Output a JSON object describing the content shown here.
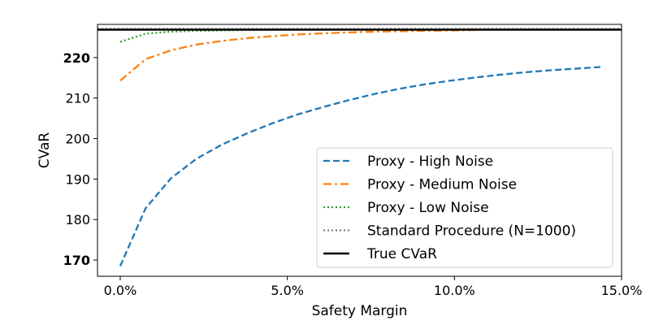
{
  "chart_data": {
    "type": "line",
    "xlabel": "Safety Margin",
    "ylabel": "CVaR",
    "xlim": [
      -0.0068,
      0.15
    ],
    "ylim": [
      166,
      228.2
    ],
    "x_ticks": [
      {
        "value": 0.0,
        "label": "0.0%"
      },
      {
        "value": 0.05,
        "label": "5.0%"
      },
      {
        "value": 0.1,
        "label": "10.0%"
      },
      {
        "value": 0.15,
        "label": "15.0%"
      }
    ],
    "y_ticks": [
      {
        "value": 170,
        "label": "170",
        "bold": true
      },
      {
        "value": 180,
        "label": "180",
        "bold": false
      },
      {
        "value": 190,
        "label": "190",
        "bold": false
      },
      {
        "value": 200,
        "label": "200",
        "bold": false
      },
      {
        "value": 210,
        "label": "210",
        "bold": false
      },
      {
        "value": 220,
        "label": "220",
        "bold": true
      }
    ],
    "grid": false,
    "legend_position": "lower-right",
    "series": [
      {
        "name": "Proxy - High Noise",
        "color": "#1f77b4",
        "style": "dashed",
        "x": [
          0.0,
          0.0076,
          0.0152,
          0.0228,
          0.0304,
          0.038,
          0.0456,
          0.0532,
          0.0608,
          0.0684,
          0.076,
          0.0836,
          0.0912,
          0.0988,
          0.1064,
          0.114,
          0.1216,
          0.1292,
          0.1368,
          0.1444
        ],
        "y": [
          168.5,
          182.8,
          190.2,
          195.0,
          198.5,
          201.3,
          203.8,
          206.0,
          207.8,
          209.5,
          211.0,
          212.3,
          213.4,
          214.3,
          215.1,
          215.8,
          216.4,
          216.9,
          217.3,
          217.7
        ]
      },
      {
        "name": "Proxy - Medium Noise",
        "color": "#ff7f0e",
        "style": "dashdot",
        "x": [
          0.0,
          0.0076,
          0.0152,
          0.0228,
          0.0304,
          0.038,
          0.0456,
          0.0532,
          0.0608,
          0.0684,
          0.076,
          0.0836,
          0.0912,
          0.0988,
          0.1064
        ],
        "y": [
          214.3,
          219.6,
          221.8,
          223.2,
          224.1,
          224.8,
          225.3,
          225.7,
          226.0,
          226.2,
          226.4,
          226.5,
          226.6,
          226.7,
          226.8
        ]
      },
      {
        "name": "Proxy - Low Noise",
        "color": "#2ca02c",
        "style": "dotted",
        "x": [
          0.0,
          0.0076,
          0.0152,
          0.0228,
          0.0304,
          0.038,
          0.0456,
          0.0532
        ],
        "y": [
          223.9,
          225.9,
          226.4,
          226.6,
          226.7,
          226.8,
          226.85,
          226.9
        ]
      },
      {
        "name": "Standard Procedure (N=1000)",
        "color": "#7f7f7f",
        "style": "dotted-horizontal",
        "y_const": 227.1
      },
      {
        "name": "True CVaR",
        "color": "#000000",
        "style": "solid-horizontal",
        "y_const": 226.9
      }
    ]
  }
}
